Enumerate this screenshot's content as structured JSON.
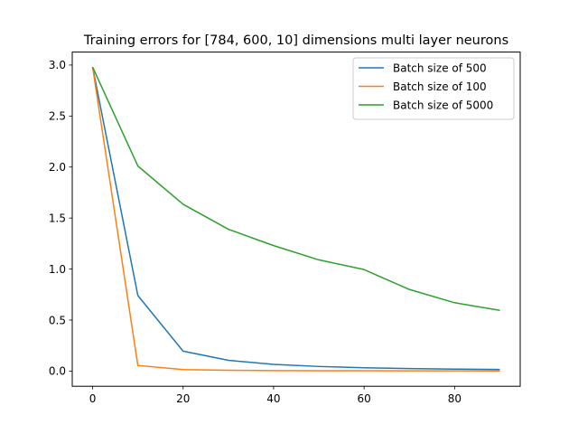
{
  "chart_data": {
    "type": "line",
    "title": "Training errors for [784, 600, 10] dimensions multi layer neurons",
    "xlabel": "",
    "ylabel": "",
    "x": [
      0,
      10,
      20,
      30,
      40,
      50,
      60,
      70,
      80,
      90
    ],
    "xlim": [
      -4.5,
      94.5
    ],
    "ylim": [
      -0.149,
      3.127
    ],
    "xticks": [
      0,
      20,
      40,
      60,
      80
    ],
    "yticks": [
      0.0,
      0.5,
      1.0,
      1.5,
      2.0,
      2.5,
      3.0
    ],
    "ytick_labels": [
      "0.0",
      "0.5",
      "1.0",
      "1.5",
      "2.0",
      "2.5",
      "3.0"
    ],
    "grid": false,
    "legend_position": "top-right",
    "series": [
      {
        "name": "Batch size of 500",
        "color": "#1f77b4",
        "values": [
          2.98,
          0.74,
          0.195,
          0.105,
          0.065,
          0.045,
          0.032,
          0.024,
          0.019,
          0.016
        ]
      },
      {
        "name": "Batch size of 100",
        "color": "#ff7f0e",
        "values": [
          2.98,
          0.055,
          0.015,
          0.008,
          0.005,
          0.004,
          0.003,
          0.002,
          0.002,
          0.001
        ]
      },
      {
        "name": "Batch size of 5000",
        "color": "#2ca02c",
        "values": [
          2.98,
          2.01,
          1.635,
          1.39,
          1.23,
          1.09,
          0.995,
          0.8,
          0.67,
          0.595
        ]
      }
    ]
  }
}
